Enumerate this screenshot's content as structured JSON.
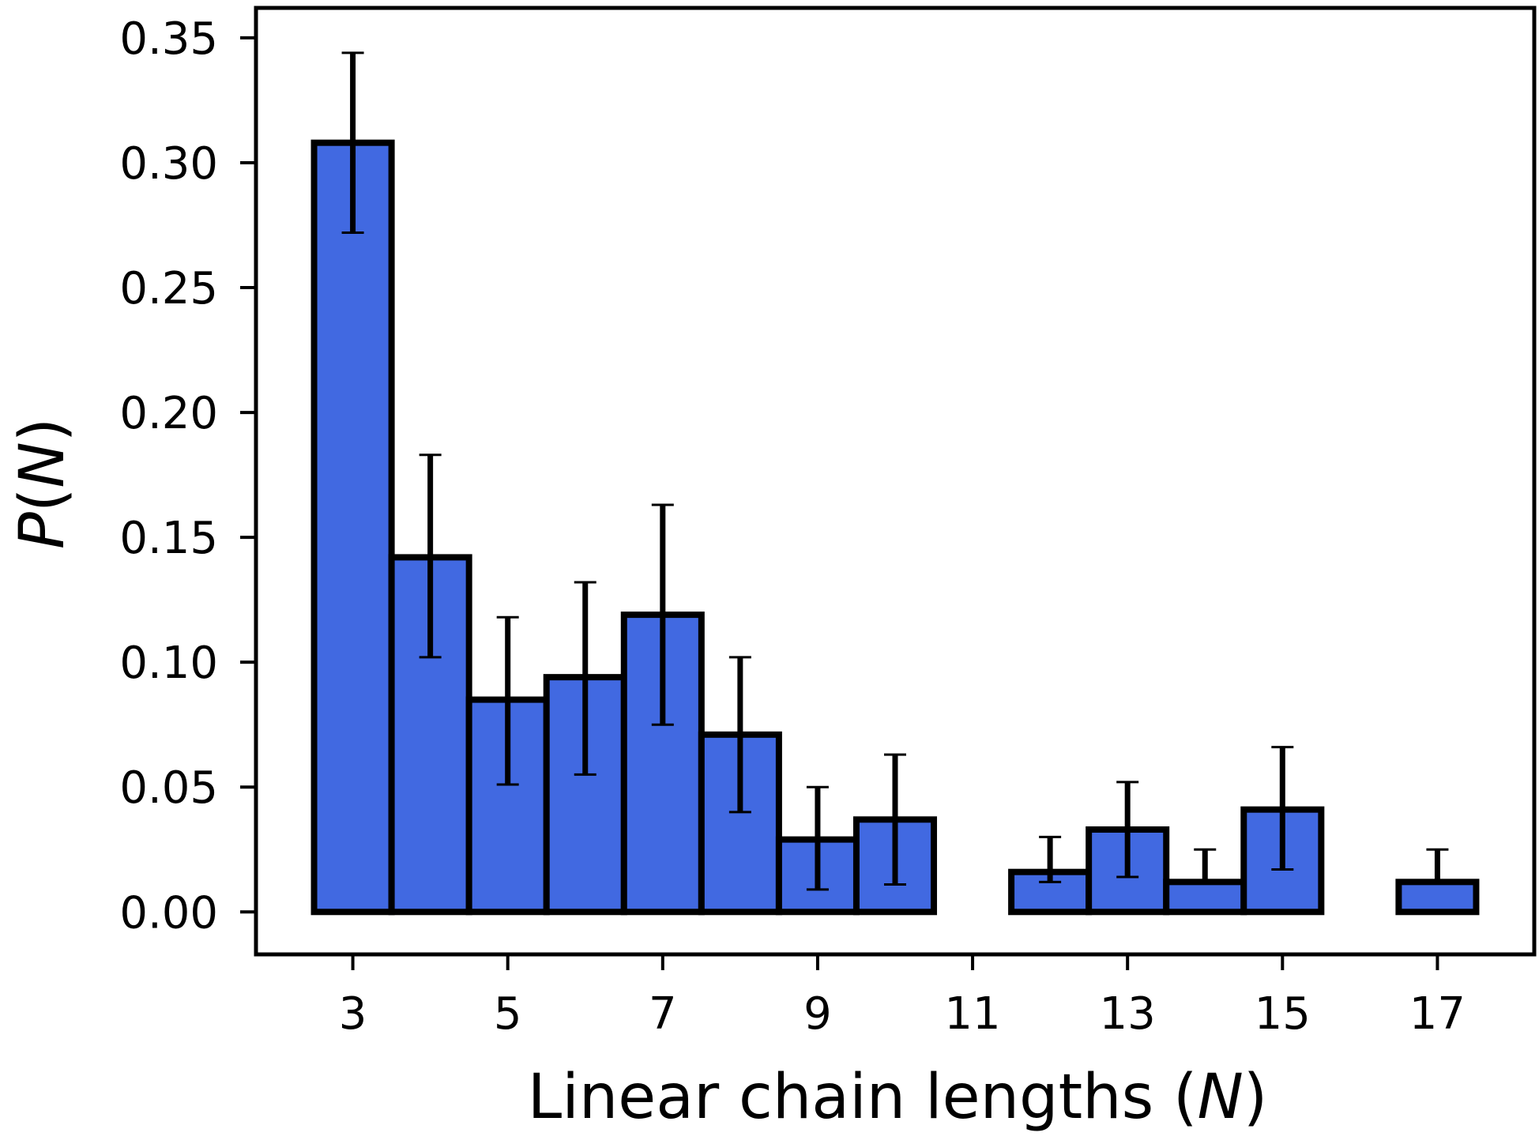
{
  "chart_data": {
    "type": "bar",
    "x": [
      3,
      4,
      5,
      6,
      7,
      8,
      9,
      10,
      11,
      12,
      13,
      14,
      15,
      16,
      17
    ],
    "values": [
      0.308,
      0.142,
      0.085,
      0.094,
      0.119,
      0.071,
      0.029,
      0.037,
      0.0,
      0.016,
      0.033,
      0.012,
      0.041,
      0.0,
      0.012
    ],
    "error_low": [
      0.272,
      0.102,
      0.051,
      0.055,
      0.075,
      0.04,
      0.009,
      0.011,
      null,
      0.012,
      0.014,
      0.012,
      0.017,
      null,
      0.012
    ],
    "error_high": [
      0.344,
      0.183,
      0.118,
      0.132,
      0.163,
      0.102,
      0.05,
      0.063,
      null,
      0.03,
      0.052,
      0.025,
      0.066,
      null,
      0.025
    ],
    "xticks": [
      3,
      5,
      7,
      9,
      11,
      13,
      15,
      17
    ],
    "yticks": [
      "0.00",
      "0.05",
      "0.10",
      "0.15",
      "0.20",
      "0.25",
      "0.30",
      "0.35"
    ],
    "xlim": [
      1.75,
      18.25
    ],
    "ylim": [
      -0.017,
      0.362
    ],
    "xlabel": {
      "text": "Linear chain lengths (",
      "var": "N",
      "close": ")"
    },
    "ylabel": {
      "var": "P",
      "open": "(",
      "var2": "N",
      "close": ")"
    },
    "grid": false,
    "bar_color": "#4169e1",
    "edge_color": "#000000"
  }
}
